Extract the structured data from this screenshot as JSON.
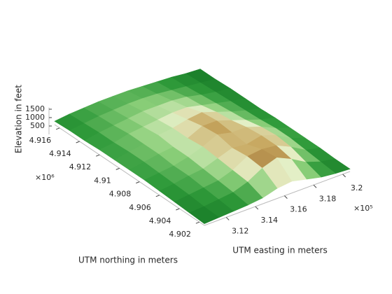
{
  "chart_data": {
    "type": "surface",
    "xlabel": "UTM easting in meters",
    "ylabel": "UTM northing in meters",
    "zlabel": "Elevation in feet",
    "x_multiplier": "×10⁵",
    "y_multiplier": "×10⁶",
    "xlim": [
      3.105,
      3.205
    ],
    "xticks": [
      3.12,
      3.14,
      3.16,
      3.18,
      3.2
    ],
    "ylim": [
      4.9015,
      4.9165
    ],
    "yticks": [
      4.902,
      4.904,
      4.906,
      4.908,
      4.91,
      4.912,
      4.914,
      4.916
    ],
    "zlim": [
      0,
      1600
    ],
    "zticks": [
      500,
      1000,
      1500
    ],
    "colormap": [
      "#0e6e20",
      "#2f9a3a",
      "#8ccf7a",
      "#e6f0c8",
      "#c8a860",
      "#7a4210"
    ],
    "x": [
      3.105,
      3.115,
      3.125,
      3.135,
      3.145,
      3.155,
      3.165,
      3.175,
      3.185,
      3.195,
      3.205
    ],
    "y": [
      4.9015,
      4.903,
      4.9045,
      4.906,
      4.9075,
      4.909,
      4.9105,
      4.912,
      4.9135,
      4.915,
      4.9165
    ],
    "z": [
      [
        100,
        150,
        200,
        250,
        350,
        600,
        700,
        500,
        300,
        200,
        150
      ],
      [
        150,
        200,
        300,
        400,
        700,
        1200,
        1500,
        1100,
        600,
        300,
        150
      ],
      [
        200,
        300,
        400,
        500,
        800,
        1300,
        1400,
        1300,
        900,
        400,
        200
      ],
      [
        250,
        350,
        500,
        600,
        900,
        1200,
        1100,
        1300,
        1000,
        500,
        200
      ],
      [
        300,
        400,
        500,
        700,
        1000,
        1400,
        1200,
        1200,
        900,
        500,
        200
      ],
      [
        300,
        450,
        600,
        700,
        900,
        1300,
        1300,
        1000,
        700,
        400,
        200
      ],
      [
        300,
        450,
        600,
        800,
        900,
        1100,
        1200,
        900,
        600,
        350,
        150
      ],
      [
        300,
        400,
        600,
        700,
        800,
        900,
        900,
        700,
        500,
        300,
        150
      ],
      [
        250,
        400,
        500,
        600,
        700,
        700,
        700,
        600,
        400,
        250,
        150
      ],
      [
        250,
        350,
        450,
        500,
        550,
        550,
        500,
        400,
        300,
        200,
        100
      ],
      [
        200,
        300,
        350,
        400,
        400,
        400,
        350,
        300,
        250,
        150,
        100
      ]
    ]
  }
}
